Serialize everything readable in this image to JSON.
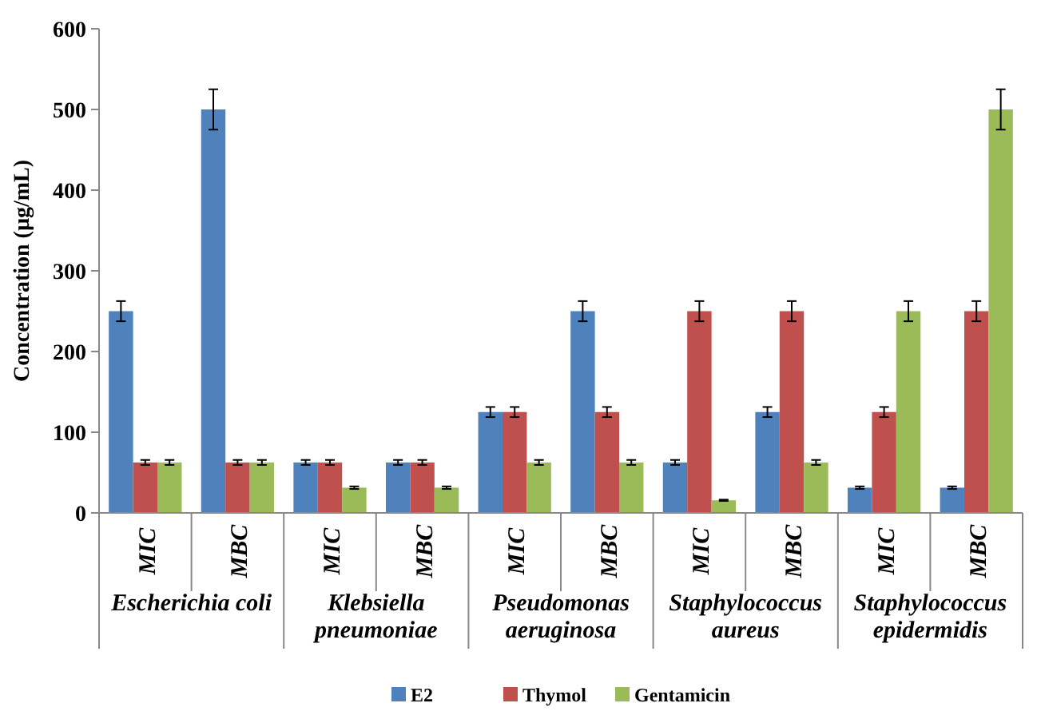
{
  "chart_data": {
    "type": "bar",
    "ylabel": "Concentration (µg/mL)",
    "categories": [
      "MIC",
      "MBC",
      "MIC",
      "MBC",
      "MIC",
      "MBC",
      "MIC",
      "MBC",
      "MIC",
      "MBC"
    ],
    "annotations": [
      "Escherichia coli",
      "Klebsiella pneumoniae",
      "Pseudomonas aeruginosa",
      "Staphylococcus aureus",
      "Staphylococcus epidermidis"
    ],
    "series": [
      {
        "name": "E2",
        "color": "#4f81bd",
        "values": [
          250,
          500,
          62.5,
          62.5,
          125,
          250,
          62.5,
          125,
          31.25,
          31.25
        ],
        "errors": [
          12.5,
          25,
          3.1,
          3.1,
          6.25,
          12.5,
          3.1,
          6.25,
          1.6,
          1.6
        ]
      },
      {
        "name": "Thymol",
        "color": "#c0504d",
        "values": [
          62.5,
          62.5,
          62.5,
          62.5,
          125,
          125,
          250,
          250,
          125,
          250
        ],
        "errors": [
          3.1,
          3.1,
          3.1,
          3.1,
          6.25,
          6.25,
          12.5,
          12.5,
          6.25,
          12.5
        ]
      },
      {
        "name": "Gentamicin",
        "color": "#9bbb59",
        "values": [
          62.5,
          62.5,
          31.25,
          31.25,
          62.5,
          62.5,
          15.6,
          62.5,
          250,
          500
        ],
        "errors": [
          3.1,
          3.1,
          1.6,
          1.6,
          3.1,
          3.1,
          0.8,
          3.1,
          12.5,
          25
        ]
      }
    ],
    "ylim": [
      0,
      600
    ],
    "yticks": [
      0,
      100,
      200,
      300,
      400,
      500,
      600
    ],
    "legend": "bottom"
  }
}
